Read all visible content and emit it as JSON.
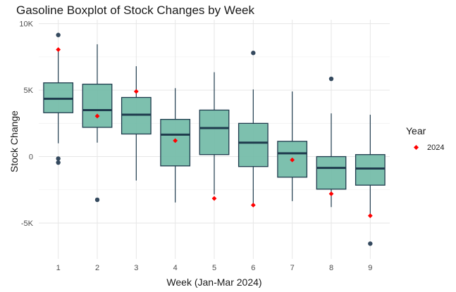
{
  "chart_data": {
    "type": "boxplot",
    "title": "Gasoline Boxplot of Stock Changes by Week",
    "xlabel": "Week (Jan-Mar 2024)",
    "ylabel": "Stock Change",
    "categories": [
      "1",
      "2",
      "3",
      "4",
      "5",
      "6",
      "7",
      "8",
      "9"
    ],
    "ylim": [
      -7700,
      10300
    ],
    "y_ticks": [
      -5000,
      0,
      5000,
      10000
    ],
    "y_tick_labels": [
      "-5K",
      "0",
      "5K",
      "10K"
    ],
    "grid": true,
    "box_fill": "#6fb9a5",
    "box_stroke": "#1f3b4d",
    "highlight_color": "#ff0000",
    "outlier_color": "#34495e",
    "boxes": [
      {
        "week": "1",
        "min": 1000,
        "q1": 3300,
        "median": 4350,
        "q3": 5550,
        "max": 7900,
        "outliers": [
          9150,
          -150,
          -450
        ]
      },
      {
        "week": "2",
        "min": 1050,
        "q1": 2200,
        "median": 3500,
        "q3": 5450,
        "max": 8450,
        "outliers": [
          -3250
        ]
      },
      {
        "week": "3",
        "min": -1800,
        "q1": 1700,
        "median": 3150,
        "q3": 4450,
        "max": 6800,
        "outliers": []
      },
      {
        "week": "4",
        "min": -3450,
        "q1": -700,
        "median": 1650,
        "q3": 2800,
        "max": 5150,
        "outliers": []
      },
      {
        "week": "5",
        "min": -2850,
        "q1": 150,
        "median": 2150,
        "q3": 3500,
        "max": 6350,
        "outliers": []
      },
      {
        "week": "6",
        "min": -3650,
        "q1": -750,
        "median": 1050,
        "q3": 2500,
        "max": 5050,
        "outliers": [
          7800
        ]
      },
      {
        "week": "7",
        "min": -3350,
        "q1": -1550,
        "median": 250,
        "q3": 1150,
        "max": 4900,
        "outliers": []
      },
      {
        "week": "8",
        "min": -3800,
        "q1": -2450,
        "median": -850,
        "q3": 0,
        "max": 3250,
        "outliers": [
          5850
        ]
      },
      {
        "week": "9",
        "min": -4350,
        "q1": -2150,
        "median": -900,
        "q3": 150,
        "max": 3150,
        "outliers": [
          -6550
        ]
      }
    ],
    "series": [
      {
        "name": "2024",
        "values": [
          8050,
          3050,
          4900,
          1200,
          -3150,
          -3650,
          -250,
          -2800,
          -4450
        ]
      }
    ],
    "legend": {
      "title": "Year",
      "position": "right",
      "items": [
        "2024"
      ]
    }
  }
}
